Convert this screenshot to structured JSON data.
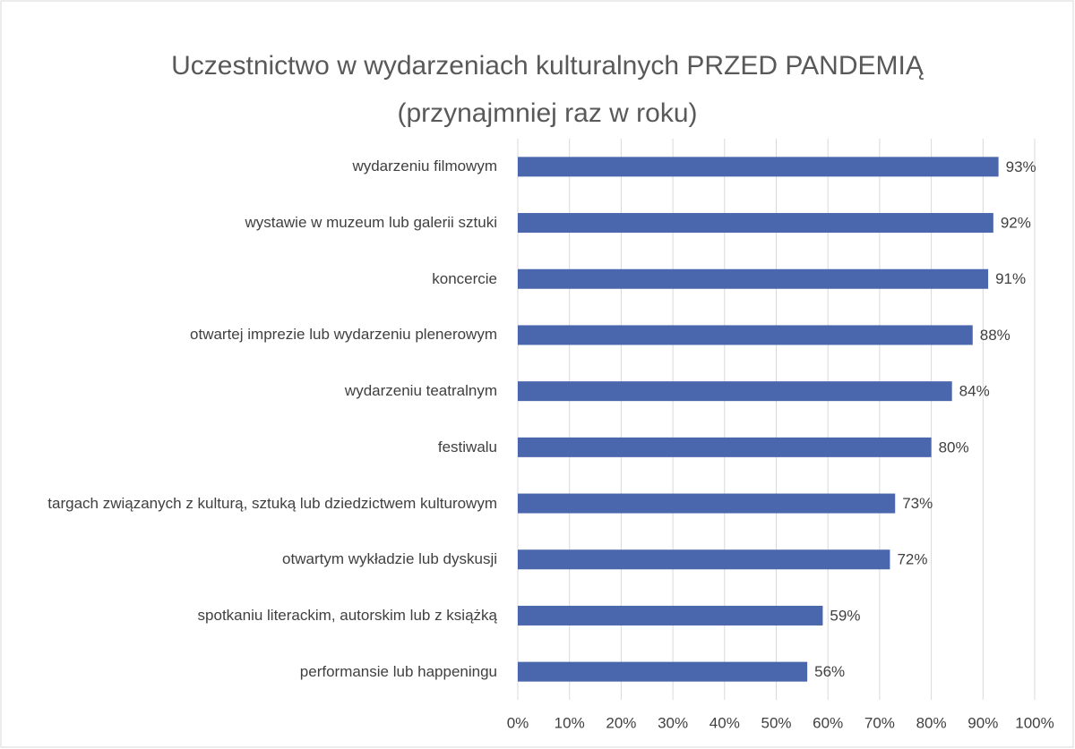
{
  "chart_data": {
    "type": "bar",
    "orientation": "horizontal",
    "title": [
      "Uczestnictwo w wydarzeniach kulturalnych PRZED PANDEMIĄ",
      "(przynajmniej raz w roku)"
    ],
    "categories": [
      "wydarzeniu filmowym",
      "wystawie w muzeum lub galerii sztuki",
      "koncercie",
      "otwartej imprezie lub wydarzeniu plenerowym",
      "wydarzeniu teatralnym",
      "festiwalu",
      "targach związanych z kulturą, sztuką lub dziedzictwem kulturowym",
      "otwartym wykładzie lub dyskusji",
      "spotkaniu literackim, autorskim lub z książką",
      "performansie lub happeningu"
    ],
    "values": [
      93,
      92,
      91,
      88,
      84,
      80,
      73,
      72,
      59,
      56
    ],
    "value_labels": [
      "93%",
      "92%",
      "91%",
      "88%",
      "84%",
      "80%",
      "73%",
      "72%",
      "59%",
      "56%"
    ],
    "color": "#4a66ac",
    "xlim": [
      0,
      100
    ],
    "xticks": [
      {
        "value": 0,
        "label": "0%"
      },
      {
        "value": 10,
        "label": "10%"
      },
      {
        "value": 20,
        "label": "20%"
      },
      {
        "value": 30,
        "label": "30%"
      },
      {
        "value": 40,
        "label": "40%"
      },
      {
        "value": 50,
        "label": "50%"
      },
      {
        "value": 60,
        "label": "60%"
      },
      {
        "value": 70,
        "label": "70%"
      },
      {
        "value": 80,
        "label": "80%"
      },
      {
        "value": 90,
        "label": "90%"
      },
      {
        "value": 100,
        "label": "100%"
      }
    ],
    "grid": true
  }
}
